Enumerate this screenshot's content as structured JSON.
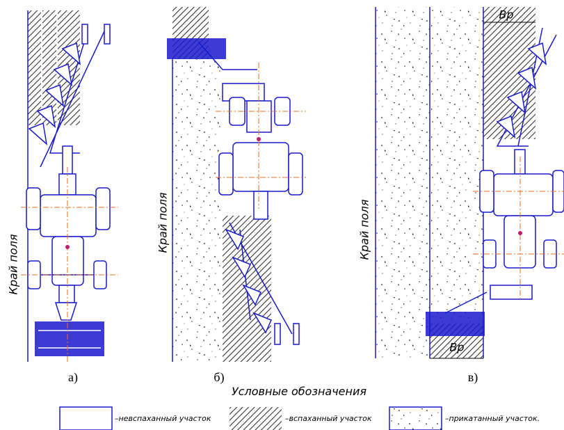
{
  "panels": [
    {
      "label": "а)",
      "edge": "Край поля"
    },
    {
      "label": "б)",
      "edge": "Край поля"
    },
    {
      "label": "в)",
      "edge": "Край поля",
      "dimensions": [
        "Вр",
        "Вр"
      ]
    }
  ],
  "legend": {
    "title": "Условные обозначения",
    "items": [
      "–невспаханный участок",
      "–вспаханный участок",
      "–прикатанный участок."
    ]
  }
}
